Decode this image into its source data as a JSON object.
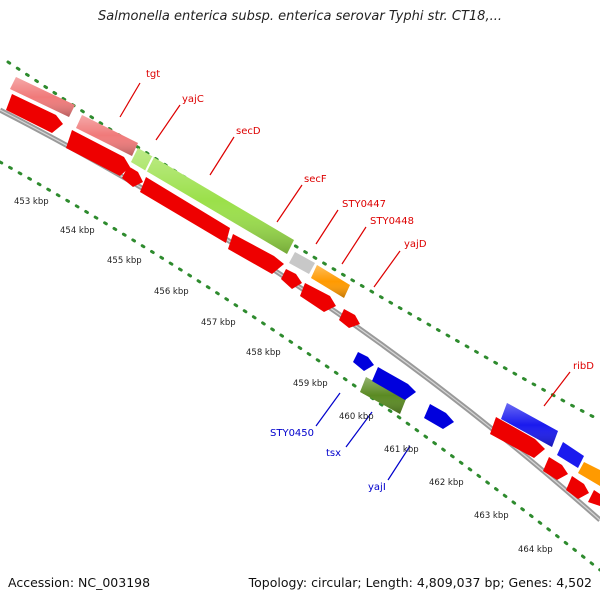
{
  "title": "Salmonella enterica subsp. enterica serovar Typhi str. CT18,...",
  "footer": {
    "accession": "Accession: NC_003198",
    "summary": "Topology: circular; Length: 4,809,037 bp; Genes: 4,502"
  },
  "colors": {
    "backbone": "#9b9b9b",
    "tick_dots": "#2e8b2e",
    "label_red": "#dd0000",
    "label_blue": "#0000cc",
    "tick_text": "#222222"
  },
  "scale_ticks": [
    "453 kbp",
    "454 kbp",
    "455 kbp",
    "456 kbp",
    "457 kbp",
    "458 kbp",
    "459 kbp",
    "460 kbp",
    "461 kbp",
    "462 kbp",
    "463 kbp",
    "464 kbp"
  ],
  "gene_labels": [
    {
      "name": "tgt",
      "color": "red"
    },
    {
      "name": "yajC",
      "color": "red"
    },
    {
      "name": "secD",
      "color": "red"
    },
    {
      "name": "secF",
      "color": "red"
    },
    {
      "name": "STY0447",
      "color": "red"
    },
    {
      "name": "STY0448",
      "color": "red"
    },
    {
      "name": "yajD",
      "color": "red"
    },
    {
      "name": "ribD",
      "color": "red"
    },
    {
      "name": "STY0450",
      "color": "blue"
    },
    {
      "name": "tsx",
      "color": "blue"
    },
    {
      "name": "yajI",
      "color": "blue"
    }
  ]
}
